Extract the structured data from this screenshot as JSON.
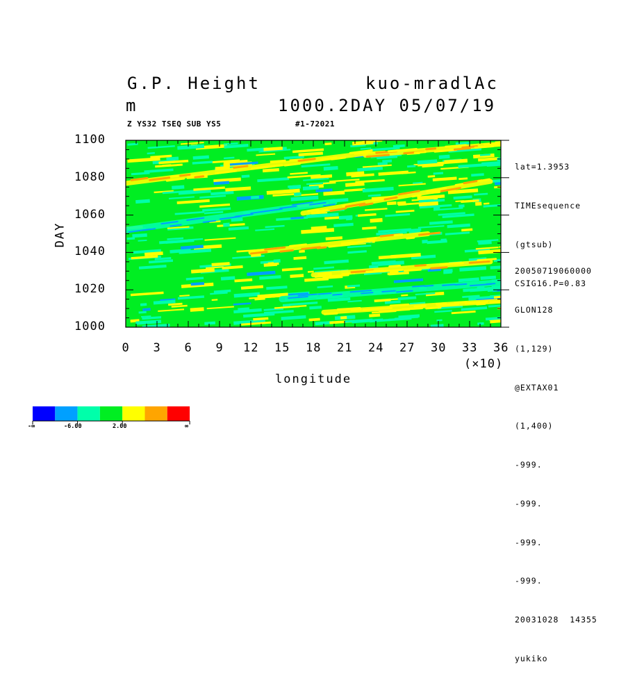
{
  "header": {
    "title_left": "G.P. Height",
    "title_right": "kuo-mradlAc",
    "unit": "m",
    "level_day_date": "1000.2DAY 05/07/19",
    "subtitle_left": "Z YS32 TSEQ SUB YS5",
    "subtitle_right": "#1-72021"
  },
  "info_panel": {
    "top_lines": [
      "lat=1.3953",
      "TIMEsequence",
      "(gtsub)",
      "CSIG16.P=0.83"
    ],
    "bottom_lines": [
      "20050719060000",
      "GLON128",
      "(1,129)",
      "@EXTAX01",
      "(1,400)",
      "-999.",
      "-999.",
      "-999.",
      "-999.",
      "20031028  14355",
      "yukiko"
    ]
  },
  "axes": {
    "xlabel": "longitude",
    "xscale_note": "(×10)",
    "ylabel": "DAY",
    "xtick_labels": [
      "0",
      "3",
      "6",
      "9",
      "12",
      "15",
      "18",
      "21",
      "24",
      "27",
      "30",
      "33",
      "36"
    ],
    "ytick_labels": [
      "1000",
      "1020",
      "1040",
      "1060",
      "1080",
      "1100"
    ]
  },
  "colorbar": {
    "colors": [
      "#0000ff",
      "#00a0ff",
      "#00ffaa",
      "#00ee22",
      "#ffff00",
      "#ffa500",
      "#ff0000"
    ],
    "labels": [
      "-∞",
      "-6.00",
      "2.00",
      "∞"
    ]
  },
  "chart_data": {
    "type": "heatmap",
    "title": "G.P. Height",
    "xlabel": "longitude",
    "ylabel": "DAY",
    "xlim": [
      0,
      360
    ],
    "ylim": [
      1000,
      1100
    ],
    "x_ticks": [
      0,
      30,
      60,
      90,
      120,
      150,
      180,
      210,
      240,
      270,
      300,
      330,
      360
    ],
    "y_ticks": [
      1000,
      1020,
      1040,
      1060,
      1080,
      1100
    ],
    "color_levels": [
      -6.0,
      2.0
    ],
    "dominant_category": "green",
    "features": [
      {
        "kind": "tilted yellow/orange band",
        "from": [
          180,
          1028
        ],
        "to": [
          350,
          1035
        ]
      },
      {
        "kind": "tilted yellow/orange band",
        "from": [
          120,
          1040
        ],
        "to": [
          290,
          1050
        ]
      },
      {
        "kind": "tilted yellow/orange band",
        "from": [
          170,
          1061
        ],
        "to": [
          350,
          1078
        ]
      },
      {
        "kind": "tilted yellow/orange band",
        "from": [
          0,
          1077
        ],
        "to": [
          230,
          1093
        ]
      },
      {
        "kind": "tilted yellow/orange band",
        "from": [
          230,
          1092
        ],
        "to": [
          360,
          1098
        ]
      },
      {
        "kind": "tilted yellow band",
        "from": [
          190,
          1008
        ],
        "to": [
          360,
          1014
        ]
      },
      {
        "kind": "tilted cyan band",
        "from": [
          0,
          1052
        ],
        "to": [
          200,
          1067
        ]
      },
      {
        "kind": "tilted cyan band",
        "from": [
          150,
          1015
        ],
        "to": [
          360,
          1024
        ]
      }
    ]
  }
}
